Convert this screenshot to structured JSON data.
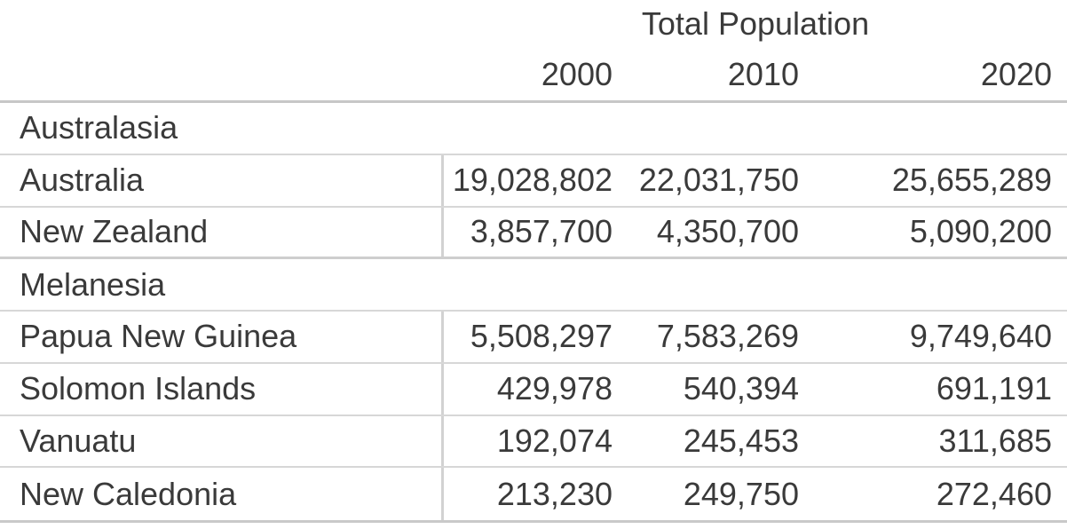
{
  "title": "Total Population",
  "years": [
    "2000",
    "2010",
    "2020"
  ],
  "colors": {
    "text": "#3a3a3a",
    "background": "#ffffff",
    "outer_border": "#c7c7c7",
    "row_separator": "#d7d7d7",
    "section_separator": "#cecece",
    "column_divider": "#d2d2d2"
  },
  "rows": [
    {
      "type": "section",
      "label": "Australasia"
    },
    {
      "type": "country",
      "label": "Australia",
      "values": [
        "19,028,802",
        "22,031,750",
        "25,655,289"
      ]
    },
    {
      "type": "country",
      "label": "New Zealand",
      "values": [
        "3,857,700",
        "4,350,700",
        "5,090,200"
      ]
    },
    {
      "type": "section",
      "label": "Melanesia"
    },
    {
      "type": "country",
      "label": "Papua New Guinea",
      "values": [
        "5,508,297",
        "7,583,269",
        "9,749,640"
      ]
    },
    {
      "type": "country",
      "label": "Solomon Islands",
      "values": [
        "429,978",
        "540,394",
        "691,191"
      ]
    },
    {
      "type": "country",
      "label": "Vanuatu",
      "values": [
        "192,074",
        "245,453",
        "311,685"
      ]
    },
    {
      "type": "country",
      "label": "New Caledonia",
      "values": [
        "213,230",
        "249,750",
        "272,460"
      ]
    }
  ],
  "chart_data": {
    "type": "table",
    "title": "Total Population",
    "columns": [
      "",
      "2000",
      "2010",
      "2020"
    ],
    "sections": [
      {
        "name": "Australasia",
        "rows": [
          {
            "label": "Australia",
            "values": [
              19028802,
              22031750,
              25655289
            ]
          },
          {
            "label": "New Zealand",
            "values": [
              3857700,
              4350700,
              5090200
            ]
          }
        ]
      },
      {
        "name": "Melanesia",
        "rows": [
          {
            "label": "Papua New Guinea",
            "values": [
              5508297,
              7583269,
              9749640
            ]
          },
          {
            "label": "Solomon Islands",
            "values": [
              429978,
              540394,
              691191
            ]
          },
          {
            "label": "Vanuatu",
            "values": [
              192074,
              245453,
              311685
            ]
          },
          {
            "label": "New Caledonia",
            "values": [
              213230,
              249750,
              272460
            ]
          }
        ]
      }
    ]
  }
}
